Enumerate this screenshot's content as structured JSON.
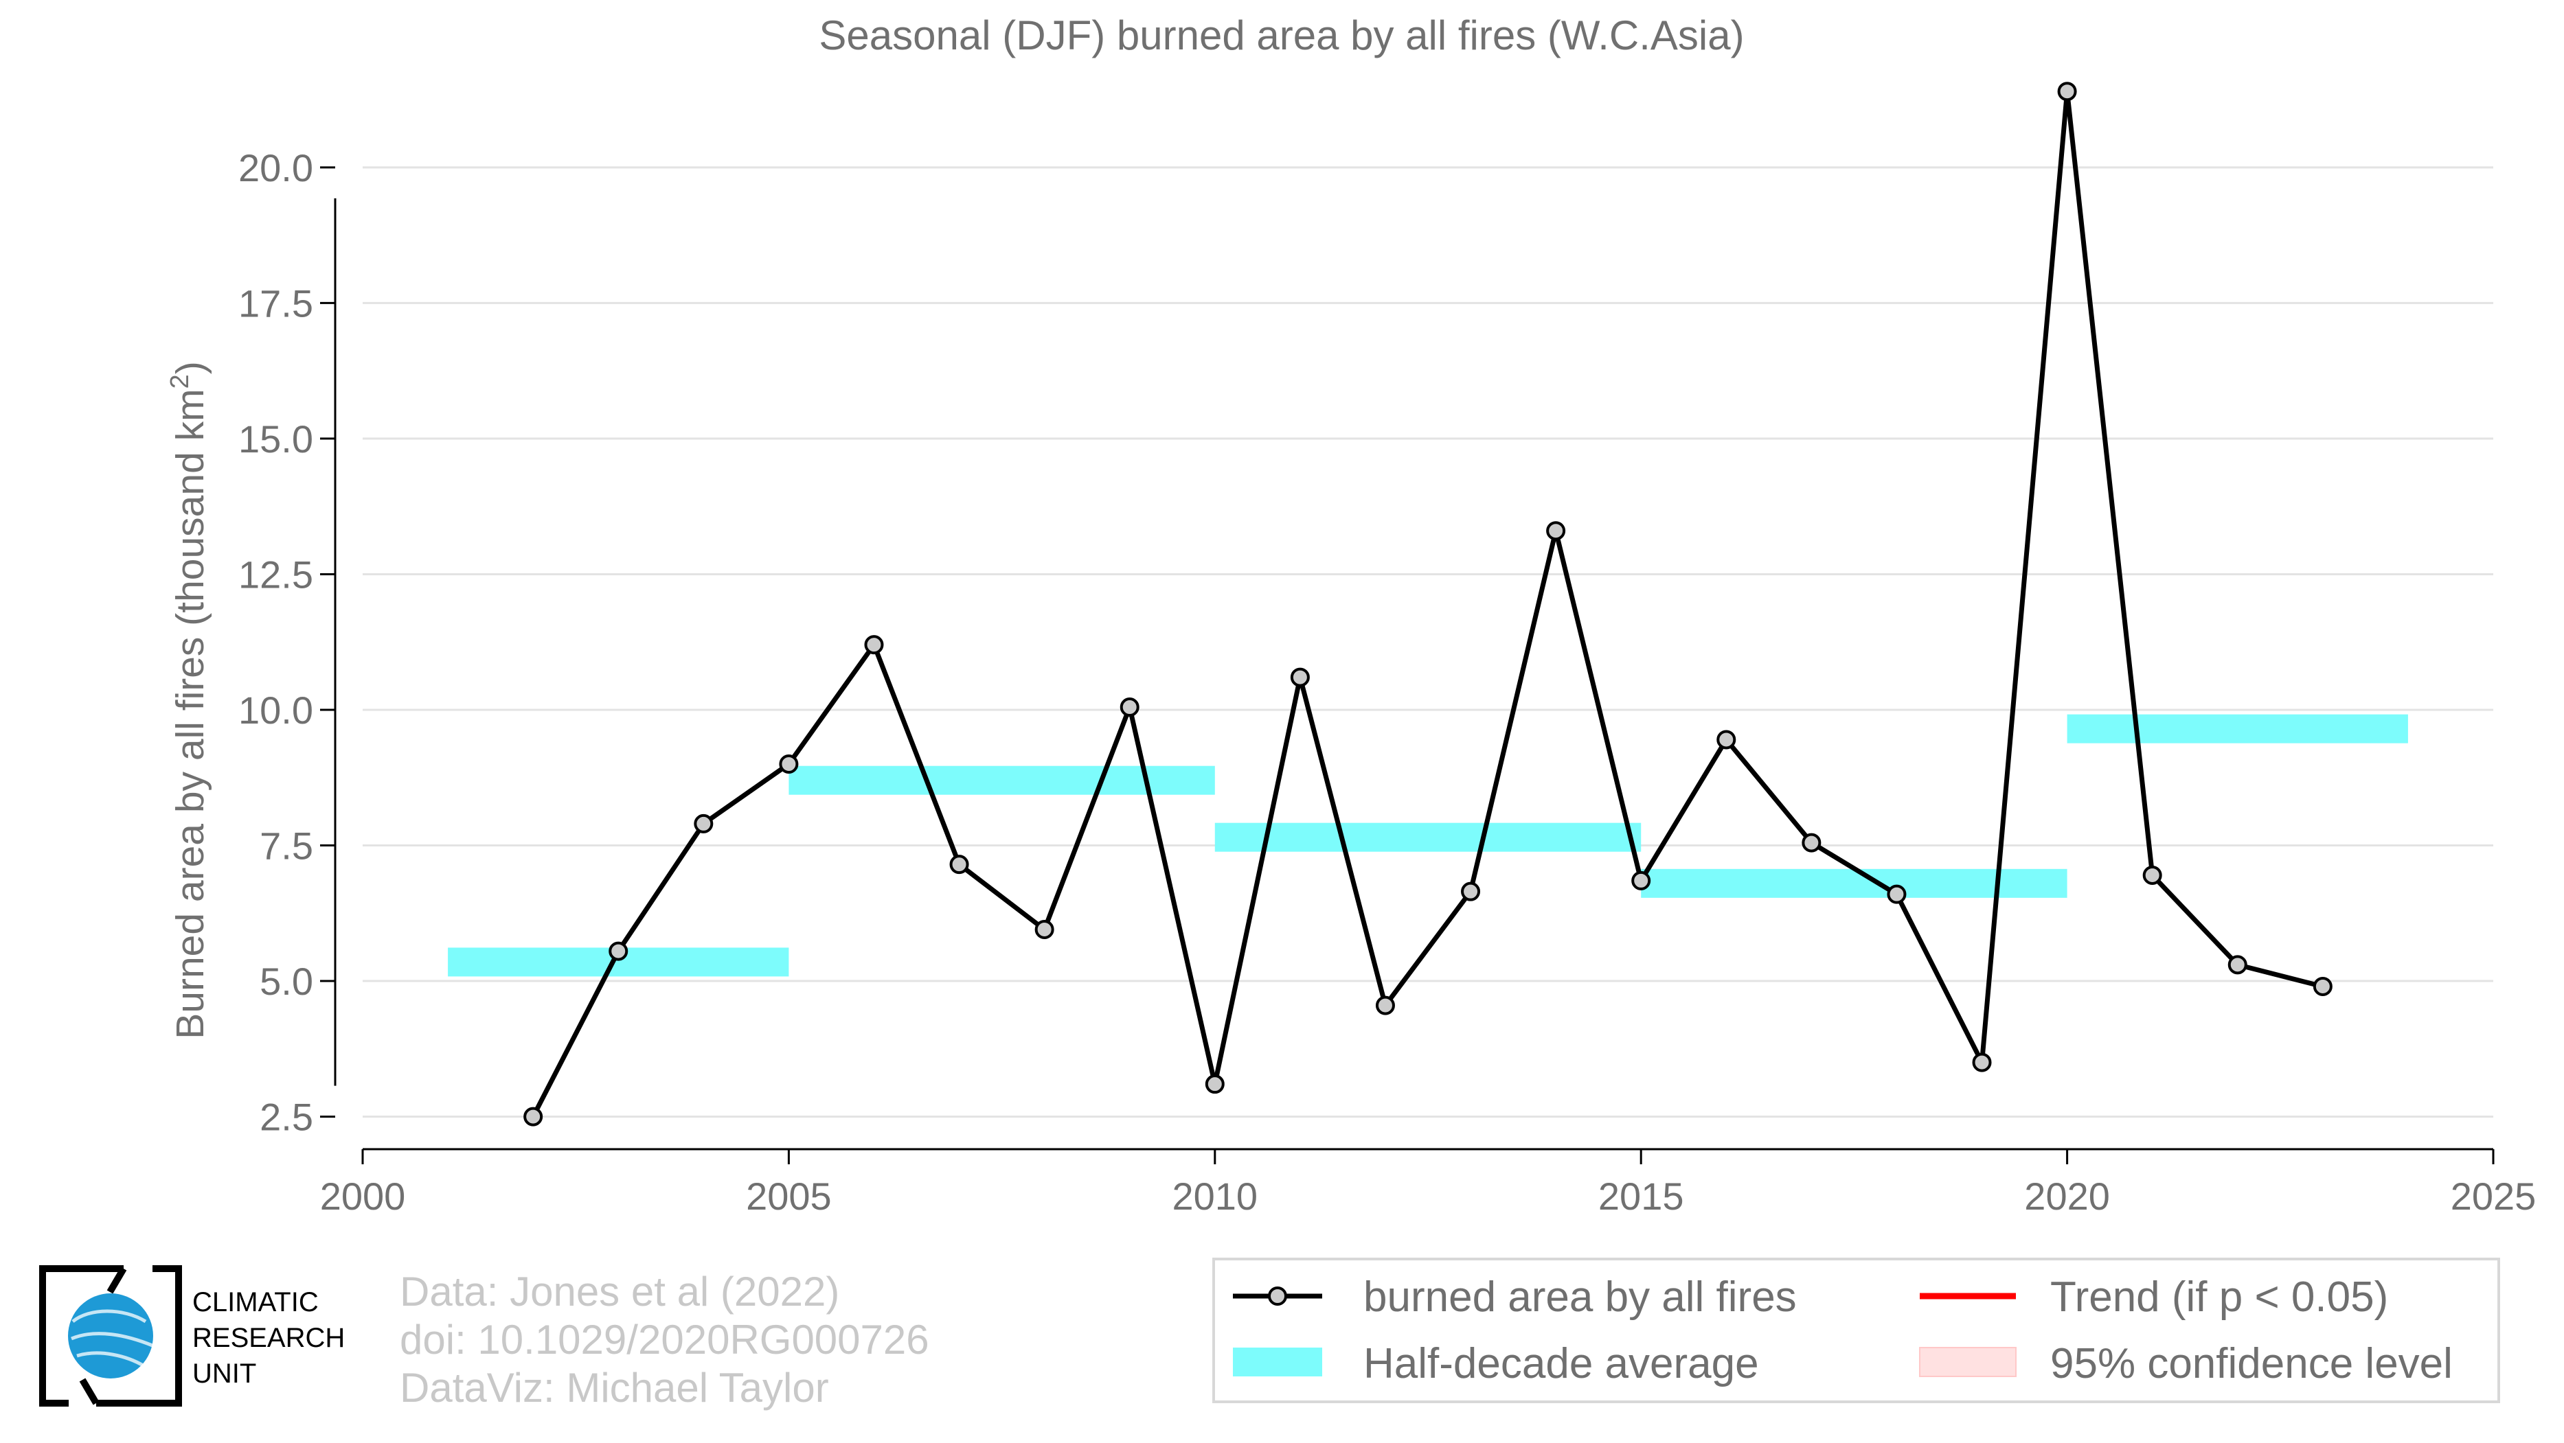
{
  "chart_data": {
    "type": "line",
    "title": "Seasonal (DJF) burned area by all fires (W.C.Asia)",
    "xlabel": "",
    "ylabel": "Burned area by all fires (thousand km",
    "ylabel_sup": "2",
    "ylabel_close": ")",
    "xlim": [
      2000,
      2025
    ],
    "ylim": [
      1.9,
      22.2
    ],
    "xticks": [
      2000,
      2005,
      2010,
      2015,
      2020,
      2025
    ],
    "yticks": [
      2.5,
      5.0,
      7.5,
      10.0,
      12.5,
      15.0,
      17.5,
      20.0
    ],
    "grid": "horizontal",
    "series": [
      {
        "name": "burned area by all fires",
        "color": "#000000",
        "marker_color": "#cccccc",
        "x": [
          2002,
          2003,
          2004,
          2005,
          2006,
          2007,
          2008,
          2009,
          2010,
          2011,
          2012,
          2013,
          2014,
          2015,
          2016,
          2017,
          2018,
          2019,
          2020,
          2021,
          2022,
          2023
        ],
        "y": [
          2.5,
          5.55,
          7.9,
          9.0,
          11.2,
          7.15,
          5.95,
          10.05,
          3.1,
          10.6,
          4.55,
          6.65,
          13.3,
          6.85,
          9.45,
          7.55,
          6.6,
          3.5,
          21.4,
          6.95,
          5.3,
          4.9
        ]
      }
    ],
    "half_decade_average": {
      "name": "Half-decade average",
      "color": "#7dfcfc",
      "segments": [
        {
          "x_start": 2001,
          "x_end": 2005,
          "value": 5.35
        },
        {
          "x_start": 2005,
          "x_end": 2010,
          "value": 8.7
        },
        {
          "x_start": 2010,
          "x_end": 2015,
          "value": 7.65
        },
        {
          "x_start": 2015,
          "x_end": 2020,
          "value": 6.8
        },
        {
          "x_start": 2020,
          "x_end": 2024,
          "value": 9.65
        }
      ]
    },
    "legend": {
      "position": "bottom-right",
      "items": [
        {
          "label": "burned area by all fires",
          "kind": "line-marker",
          "color": "#000000"
        },
        {
          "label": "Trend (if p < 0.05)",
          "kind": "line",
          "color": "#ff0000"
        },
        {
          "label": "Half-decade average",
          "kind": "band",
          "color": "#7dfcfc"
        },
        {
          "label": "95% confidence level",
          "kind": "band",
          "color": "#ffe1e1"
        }
      ]
    }
  },
  "credits": {
    "line1": "Data: Jones et al (2022)",
    "line2": "doi: 10.1029/2020RG000726",
    "line3": "DataViz: Michael Taylor"
  },
  "logo": {
    "line1": "CLIMATIC",
    "line2": "RESEARCH",
    "line3": "UNIT"
  }
}
